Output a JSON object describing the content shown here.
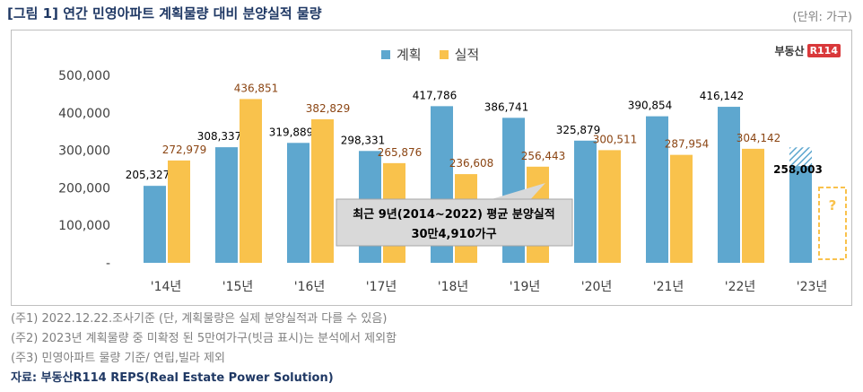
{
  "header": {
    "title": "[그림 1] 연간 민영아파트 계획물량 대비 분양실적 물량",
    "unit": "(단위: 가구)"
  },
  "brand": {
    "name": "부동산",
    "badge": "R114"
  },
  "colors": {
    "plan": "#5ea7cf",
    "actual": "#f9c24c",
    "callout": "#d9d9d9",
    "question": "#f9c24c"
  },
  "chart_data": {
    "type": "bar",
    "categories": [
      "'14년",
      "'15년",
      "'16년",
      "'17년",
      "'18년",
      "'19년",
      "'20년",
      "'21년",
      "'22년",
      "'23년"
    ],
    "series": [
      {
        "name": "계획",
        "values": [
          205327,
          308337,
          319889,
          298331,
          417786,
          386741,
          325879,
          390854,
          416142,
          258003
        ]
      },
      {
        "name": "실적",
        "values": [
          272979,
          436851,
          382829,
          265876,
          236608,
          256443,
          300511,
          287954,
          304142,
          null
        ]
      }
    ],
    "labels": {
      "plan": [
        "205,327",
        "308,337",
        "319,889",
        "298,331",
        "417,786",
        "386,741",
        "325,879",
        "390,854",
        "416,142",
        "258,003"
      ],
      "actual": [
        "272,979",
        "436,851",
        "382,829",
        "265,876",
        "236,608",
        "256,443",
        "300,511",
        "287,954",
        "304,142",
        "?"
      ]
    },
    "y_ticks": [
      0,
      100000,
      200000,
      300000,
      400000,
      500000
    ],
    "y_tick_labels": [
      "-",
      "100,000",
      "200,000",
      "300,000",
      "400,000",
      "500,000"
    ],
    "ylim": [
      0,
      500000
    ],
    "hatched_unconfirmed_2023": 50000,
    "legend_position": "top-center",
    "callout": {
      "line1": "최근 9년(2014~2022) 평균 분양실적",
      "line2": "30만4,910가구"
    }
  },
  "notes": [
    "(주1) 2022.12.22.조사기준 (단, 계획물량은 실제 분양실적과 다를 수 있음)",
    "(주2) 2023년 계획물량 중 미확정 된 5만여가구(빗금 표시)는 분석에서 제외함",
    "(주3) 민영아파트 물량 기준/ 연립,빌라 제외"
  ],
  "source": "자료: 부동산R114 REPS(Real Estate Power Solution)"
}
